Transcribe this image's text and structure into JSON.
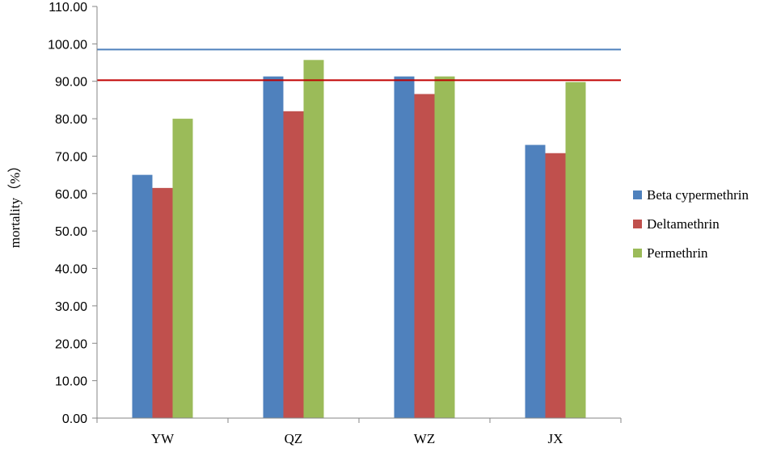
{
  "chart_data": {
    "type": "bar",
    "ylabel": "mortality（%）",
    "ylim": [
      0,
      110
    ],
    "ytick_step": 10,
    "ytick_decimals": 2,
    "grid": false,
    "legend_position": "right",
    "categories": [
      "YW",
      "QZ",
      "WZ",
      "JX"
    ],
    "series": [
      {
        "name": "Beta cypermethrin",
        "color": "#4f81bd",
        "values": [
          65.0,
          91.3,
          91.3,
          73.0
        ]
      },
      {
        "name": "Deltamethrin",
        "color": "#c0504d",
        "values": [
          61.5,
          82.0,
          86.6,
          70.8
        ]
      },
      {
        "name": "Permethrin",
        "color": "#9bbb59",
        "values": [
          80.0,
          95.7,
          91.3,
          89.8
        ]
      }
    ],
    "reference_lines": [
      {
        "value": 98.5,
        "color": "#4f81bd"
      },
      {
        "value": 90.3,
        "color": "#c00000"
      }
    ]
  }
}
